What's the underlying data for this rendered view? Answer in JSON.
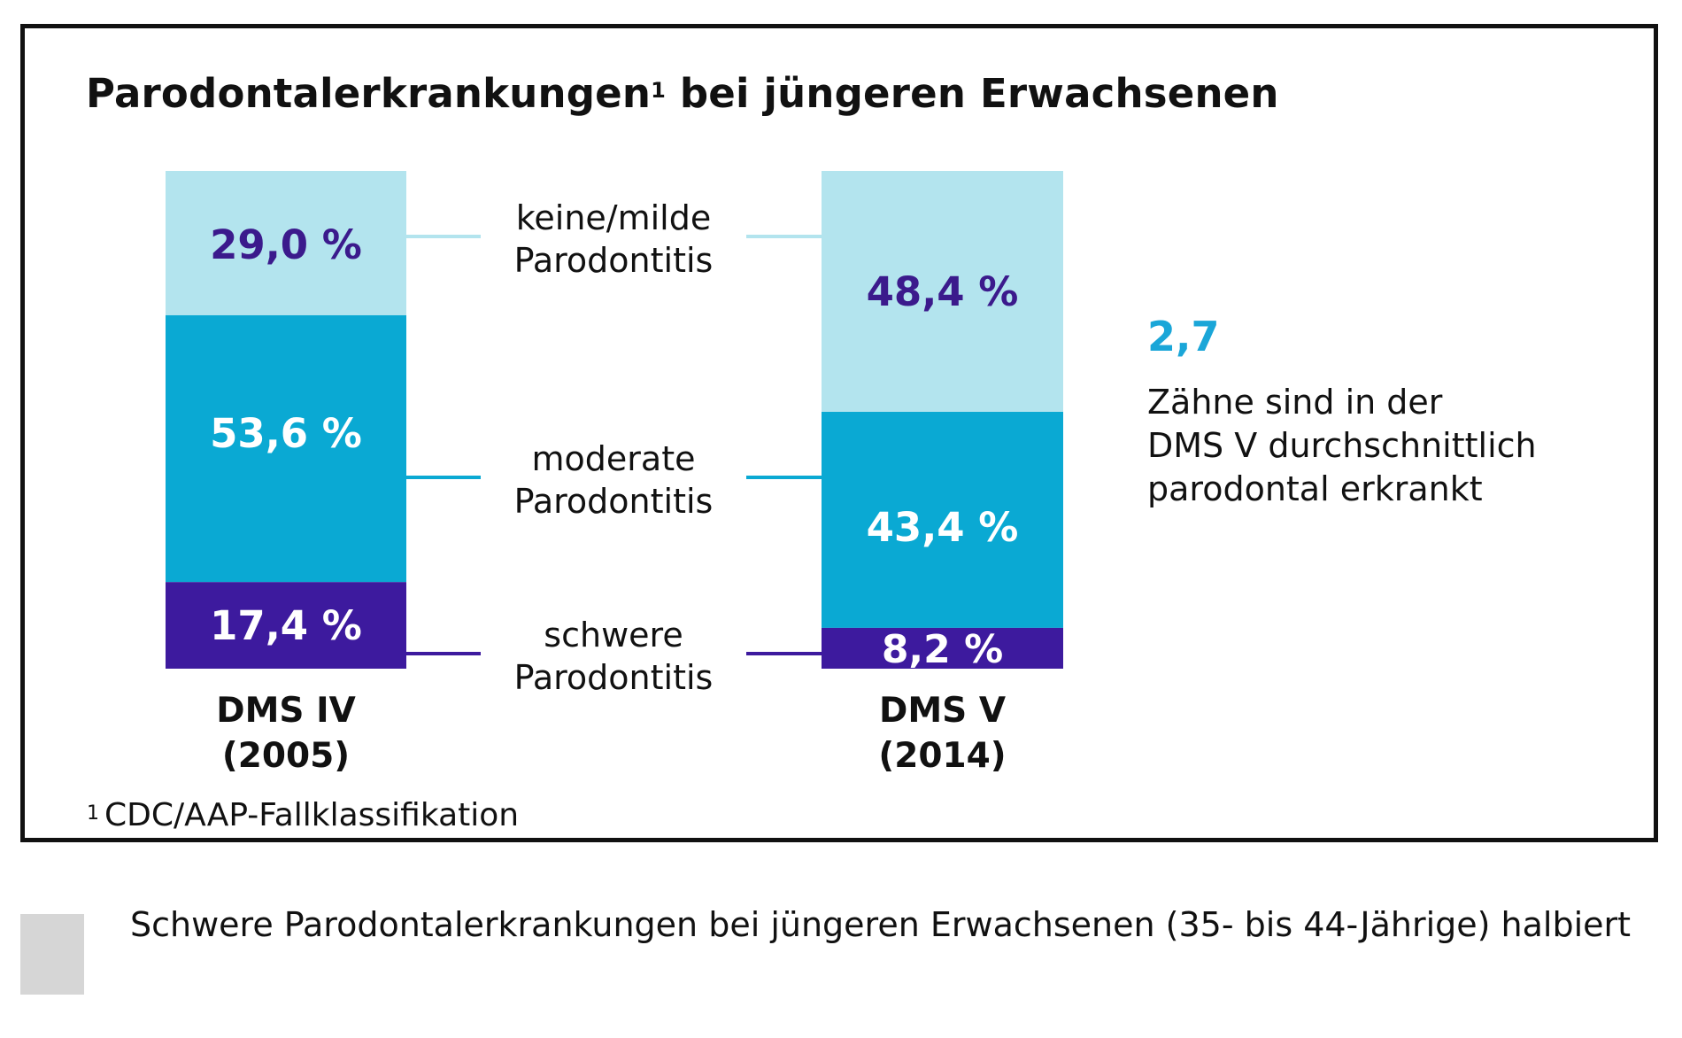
{
  "title": {
    "main": "Parodontalerkrankungen",
    "superscript": "1",
    "rest": " bei jüngeren Erwachsenen"
  },
  "colors": {
    "keine_milde": "#b3e4ee",
    "moderate": "#0aa9d3",
    "schwere": "#3d1a9e",
    "label_dark": "#3b1a8c",
    "label_light": "#ffffff",
    "highlight": "#1aa6d8",
    "legend_swatch": "#d6d6d6"
  },
  "chart_data": {
    "type": "bar",
    "stacked": true,
    "title": "Parodontalerkrankungen¹ bei jüngeren Erwachsenen",
    "categories": [
      "DMS IV (2005)",
      "DMS V (2014)"
    ],
    "category_labels": [
      {
        "line1": "DMS IV",
        "line2": "(2005)"
      },
      {
        "line1": "DMS V",
        "line2": "(2014)"
      }
    ],
    "unit": "%",
    "ylim": [
      0,
      100
    ],
    "grid": false,
    "series": [
      {
        "name": "keine/milde Parodontitis",
        "line1": "keine/milde",
        "line2": "Parodontitis",
        "values": [
          29.0,
          48.4
        ],
        "labels": [
          "29,0 %",
          "48,4 %"
        ]
      },
      {
        "name": "moderate Parodontitis",
        "line1": "moderate",
        "line2": "Parodontitis",
        "values": [
          53.6,
          43.4
        ],
        "labels": [
          "53,6 %",
          "43,4 %"
        ]
      },
      {
        "name": "schwere Parodontitis",
        "line1": "schwere",
        "line2": "Parodontitis",
        "values": [
          17.4,
          8.2
        ],
        "labels": [
          "17,4 %",
          "8,2 %"
        ]
      }
    ],
    "legend_placement": "center-between-bars"
  },
  "side_note": {
    "value": "2,7",
    "lines": [
      "Zähne sind in der",
      "DMS V durchschnittlich",
      "parodontal erkrankt"
    ]
  },
  "footnote": {
    "marker": "1",
    "text": "CDC/AAP-Fallklassifikation"
  },
  "caption": {
    "text": "Schwere Parodontalerkrankungen bei jüngeren Erwachsenen (35- bis 44-Jährige) halbiert"
  }
}
